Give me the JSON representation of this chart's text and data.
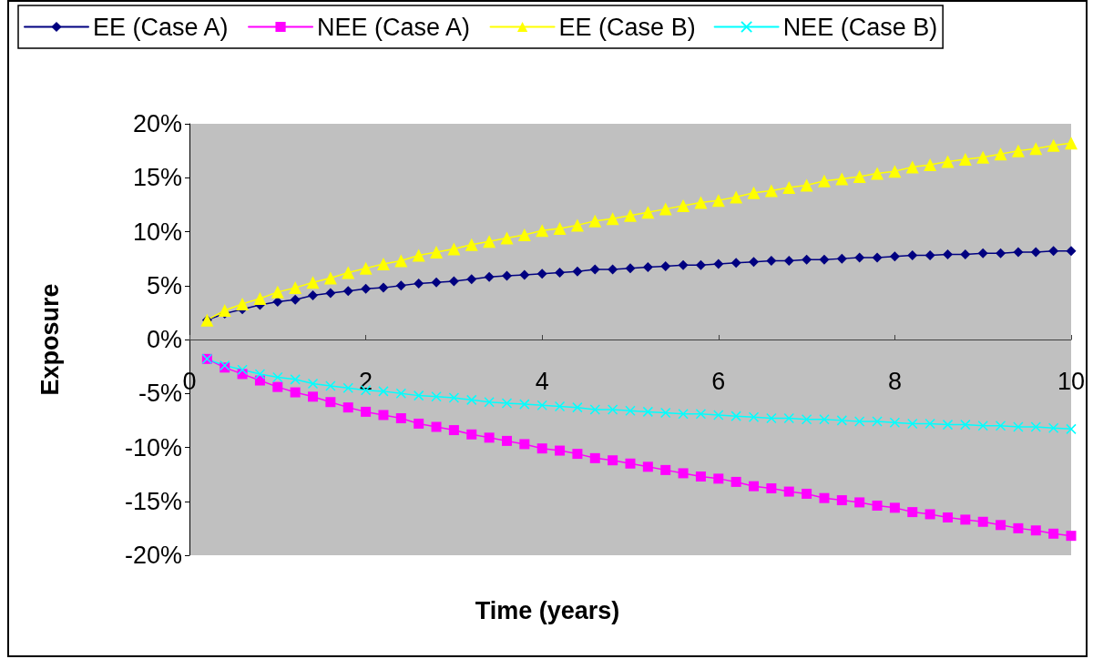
{
  "chart_data": {
    "type": "line",
    "xlabel": "Time (years)",
    "ylabel": "Exposure",
    "x": [
      0.2,
      0.4,
      0.6,
      0.8,
      1.0,
      1.2,
      1.4,
      1.6,
      1.8,
      2.0,
      2.2,
      2.4,
      2.6,
      2.8,
      3.0,
      3.2,
      3.4,
      3.6,
      3.8,
      4.0,
      4.2,
      4.4,
      4.6,
      4.8,
      5.0,
      5.2,
      5.4,
      5.6,
      5.8,
      6.0,
      6.2,
      6.4,
      6.6,
      6.8,
      7.0,
      7.2,
      7.4,
      7.6,
      7.8,
      8.0,
      8.2,
      8.4,
      8.6,
      8.8,
      9.0,
      9.2,
      9.4,
      9.6,
      9.8,
      10.0
    ],
    "series": [
      {
        "name": "EE (Case A)",
        "color": "#000080",
        "marker": "diamond",
        "values": [
          1.8,
          2.4,
          2.8,
          3.2,
          3.5,
          3.7,
          4.1,
          4.3,
          4.5,
          4.7,
          4.8,
          5.0,
          5.2,
          5.3,
          5.4,
          5.6,
          5.8,
          5.9,
          6.0,
          6.1,
          6.2,
          6.3,
          6.5,
          6.5,
          6.6,
          6.7,
          6.8,
          6.9,
          6.9,
          7.0,
          7.1,
          7.2,
          7.3,
          7.3,
          7.4,
          7.4,
          7.5,
          7.6,
          7.6,
          7.7,
          7.8,
          7.8,
          7.9,
          7.9,
          8.0,
          8.0,
          8.1,
          8.1,
          8.2,
          8.2
        ]
      },
      {
        "name": "NEE (Case A)",
        "color": "#ff00ff",
        "marker": "square",
        "values": [
          -1.8,
          -2.6,
          -3.2,
          -3.8,
          -4.4,
          -4.9,
          -5.3,
          -5.8,
          -6.3,
          -6.7,
          -7.0,
          -7.3,
          -7.8,
          -8.1,
          -8.4,
          -8.8,
          -9.1,
          -9.4,
          -9.7,
          -10.1,
          -10.3,
          -10.6,
          -11.0,
          -11.2,
          -11.5,
          -11.8,
          -12.1,
          -12.4,
          -12.7,
          -12.9,
          -13.2,
          -13.6,
          -13.8,
          -14.1,
          -14.3,
          -14.7,
          -14.9,
          -15.1,
          -15.4,
          -15.6,
          -16.0,
          -16.2,
          -16.5,
          -16.7,
          -16.9,
          -17.2,
          -17.5,
          -17.7,
          -18.0,
          -18.2
        ]
      },
      {
        "name": "EE (Case B)",
        "color": "#ffff00",
        "marker": "triangle",
        "values": [
          1.8,
          2.7,
          3.3,
          3.8,
          4.4,
          4.8,
          5.3,
          5.7,
          6.2,
          6.6,
          7.0,
          7.3,
          7.8,
          8.1,
          8.4,
          8.8,
          9.1,
          9.4,
          9.7,
          10.1,
          10.3,
          10.6,
          11.0,
          11.2,
          11.5,
          11.8,
          12.1,
          12.4,
          12.7,
          12.9,
          13.2,
          13.6,
          13.8,
          14.1,
          14.3,
          14.7,
          14.9,
          15.1,
          15.4,
          15.6,
          16.0,
          16.2,
          16.5,
          16.7,
          16.9,
          17.2,
          17.5,
          17.7,
          18.0,
          18.2
        ]
      },
      {
        "name": "NEE (Case B)",
        "color": "#00ffff",
        "marker": "cross",
        "values": [
          -1.8,
          -2.4,
          -2.8,
          -3.2,
          -3.5,
          -3.7,
          -4.1,
          -4.3,
          -4.5,
          -4.7,
          -4.8,
          -5.0,
          -5.2,
          -5.3,
          -5.4,
          -5.6,
          -5.8,
          -5.9,
          -6.0,
          -6.1,
          -6.2,
          -6.3,
          -6.5,
          -6.5,
          -6.6,
          -6.7,
          -6.8,
          -6.9,
          -6.9,
          -7.0,
          -7.1,
          -7.2,
          -7.3,
          -7.3,
          -7.4,
          -7.4,
          -7.5,
          -7.6,
          -7.6,
          -7.7,
          -7.8,
          -7.8,
          -7.9,
          -7.9,
          -8.0,
          -8.0,
          -8.1,
          -8.1,
          -8.2,
          -8.3
        ]
      }
    ],
    "xlim": [
      0,
      10
    ],
    "xticks": [
      0,
      2,
      4,
      6,
      8,
      10
    ],
    "ylim": [
      -20,
      20
    ],
    "yticks": [
      {
        "value": -20,
        "label": "-20%"
      },
      {
        "value": -15,
        "label": "-15%"
      },
      {
        "value": -10,
        "label": "-10%"
      },
      {
        "value": -5,
        "label": "-5%"
      },
      {
        "value": 0,
        "label": "0%"
      },
      {
        "value": 5,
        "label": "5%"
      },
      {
        "value": 10,
        "label": "10%"
      },
      {
        "value": 15,
        "label": "15%"
      },
      {
        "value": 20,
        "label": "20%"
      }
    ],
    "grid": false,
    "legend": "top",
    "line_style": "solid"
  }
}
